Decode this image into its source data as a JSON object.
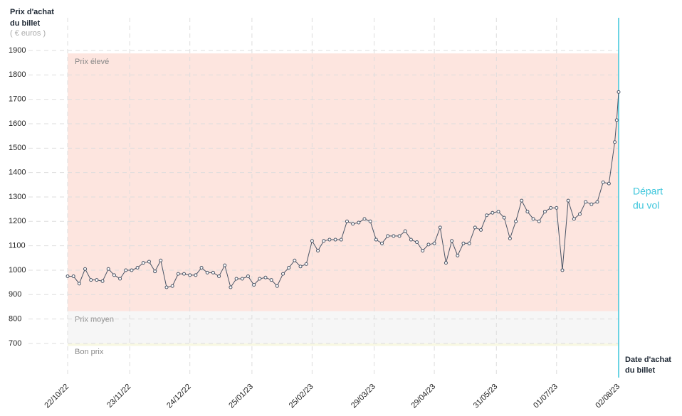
{
  "chart_data": {
    "type": "line",
    "y_title": [
      "Prix d'achat",
      "du billet"
    ],
    "y_unit": "( € euros )",
    "x_title": [
      "Date d'achat",
      "du billet"
    ],
    "departure": {
      "x": "02/08/23",
      "label": [
        "Départ",
        "du vol"
      ],
      "color": "#3cc6dc"
    },
    "bands": [
      {
        "label": "Prix élevé",
        "from": 832,
        "to": 1888,
        "color": "#fde5df"
      },
      {
        "label": "Prix moyen",
        "from": 700,
        "to": 832,
        "color": "#f6f6f6"
      },
      {
        "label": "Bon prix",
        "from": 690,
        "to": 700,
        "color": "#f8f8e2"
      }
    ],
    "xlim": [
      "22/10/22",
      "02/08/23"
    ],
    "xticks": [
      "22/10/22",
      "23/11/22",
      "24/12/22",
      "25/01/23",
      "25/02/23",
      "29/03/23",
      "29/04/23",
      "31/05/23",
      "01/07/23",
      "02/08/23"
    ],
    "ylim": [
      560,
      1900
    ],
    "yticks": [
      700,
      800,
      900,
      1000,
      1100,
      1200,
      1300,
      1400,
      1500,
      1600,
      1700,
      1800,
      1900
    ],
    "grid": true,
    "color": "#4a5566",
    "x": [
      "22/10/22",
      "25/10/22",
      "28/10/22",
      "31/10/22",
      "03/11/22",
      "06/11/22",
      "09/11/22",
      "12/11/22",
      "15/11/22",
      "18/11/22",
      "21/11/22",
      "24/11/22",
      "27/11/22",
      "30/11/22",
      "03/12/22",
      "06/12/22",
      "09/12/22",
      "12/12/22",
      "15/12/22",
      "18/12/22",
      "21/12/22",
      "24/12/22",
      "27/12/22",
      "30/12/22",
      "02/01/23",
      "05/01/23",
      "08/01/23",
      "11/01/23",
      "14/01/23",
      "17/01/23",
      "20/01/23",
      "23/01/23",
      "26/01/23",
      "29/01/23",
      "01/02/23",
      "04/02/23",
      "07/02/23",
      "10/02/23",
      "13/02/23",
      "16/02/23",
      "19/02/23",
      "22/02/23",
      "25/02/23",
      "28/02/23",
      "03/03/23",
      "06/03/23",
      "09/03/23",
      "12/03/23",
      "15/03/23",
      "18/03/23",
      "21/03/23",
      "24/03/23",
      "27/03/23",
      "30/03/23",
      "02/04/23",
      "05/04/23",
      "08/04/23",
      "11/04/23",
      "14/04/23",
      "17/04/23",
      "20/04/23",
      "23/04/23",
      "26/04/23",
      "29/04/23",
      "02/05/23",
      "05/05/23",
      "08/05/23",
      "11/05/23",
      "14/05/23",
      "17/05/23",
      "20/05/23",
      "23/05/23",
      "26/05/23",
      "29/05/23",
      "01/06/23",
      "04/06/23",
      "07/06/23",
      "10/06/23",
      "13/06/23",
      "16/06/23",
      "19/06/23",
      "22/06/23",
      "25/06/23",
      "28/06/23",
      "01/07/23",
      "04/07/23",
      "07/07/23",
      "10/07/23",
      "13/07/23",
      "16/07/23",
      "19/07/23",
      "22/07/23",
      "25/07/23",
      "28/07/23",
      "31/07/23",
      "01/08/23",
      "02/08/23"
    ],
    "values": [
      975,
      975,
      945,
      1005,
      960,
      960,
      955,
      1005,
      980,
      965,
      1000,
      1000,
      1010,
      1030,
      1035,
      995,
      1040,
      930,
      935,
      985,
      985,
      980,
      980,
      1010,
      990,
      990,
      975,
      1020,
      930,
      965,
      965,
      975,
      940,
      965,
      970,
      960,
      935,
      985,
      1010,
      1040,
      1015,
      1025,
      1120,
      1080,
      1120,
      1125,
      1125,
      1125,
      1200,
      1190,
      1195,
      1210,
      1200,
      1125,
      1110,
      1140,
      1140,
      1140,
      1160,
      1125,
      1115,
      1080,
      1105,
      1110,
      1175,
      1030,
      1120,
      1060,
      1110,
      1110,
      1175,
      1165,
      1225,
      1235,
      1240,
      1215,
      1130,
      1200,
      1285,
      1240,
      1210,
      1200,
      1240,
      1255,
      1255,
      1000,
      1285,
      1210,
      1230,
      1280,
      1270,
      1280,
      1360,
      1355,
      1525,
      1615,
      1730
    ]
  }
}
